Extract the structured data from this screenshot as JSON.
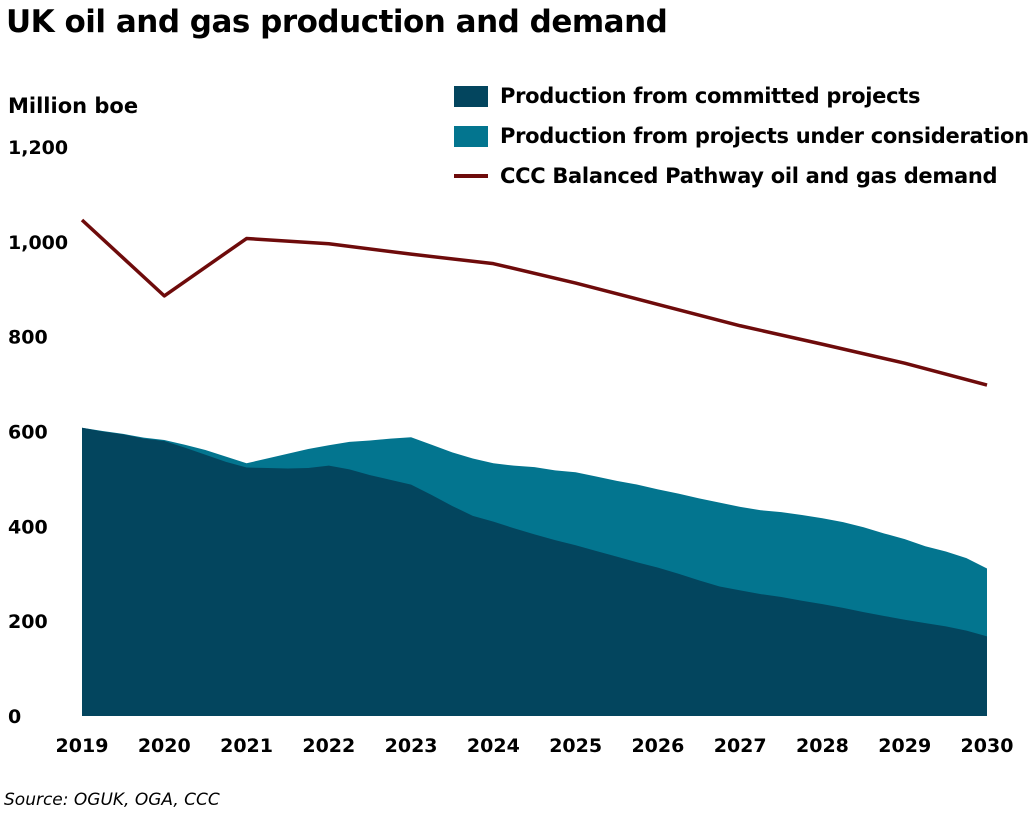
{
  "title": "UK oil and gas production and demand",
  "source": "Source: OGUK, OGA, CCC",
  "colors": {
    "committed": "#03455e",
    "consideration": "#03758f",
    "demand": "#6e0b0b"
  },
  "chart_data": {
    "type": "area",
    "title": "UK oil and gas production and demand",
    "ylabel": "Million boe",
    "xlabel": "",
    "ylim": [
      0,
      1200
    ],
    "y_ticks": [
      0,
      200,
      400,
      600,
      800,
      1000,
      1200
    ],
    "y_tick_labels": [
      "0",
      "200",
      "400",
      "600",
      "800",
      "1,000",
      "1,200"
    ],
    "x_ticks": [
      2019,
      2020,
      2021,
      2022,
      2023,
      2024,
      2025,
      2026,
      2027,
      2028,
      2029,
      2030
    ],
    "x_tick_labels": [
      "2019",
      "2020",
      "2021",
      "2022",
      "2023",
      "2024",
      "2025",
      "2026",
      "2027",
      "2028",
      "2029",
      "2030"
    ],
    "grid": false,
    "legend_position": "top-right",
    "series": [
      {
        "name": "Production from committed projects",
        "kind": "area",
        "x": [
          2019,
          2019.25,
          2019.5,
          2019.75,
          2020,
          2020.25,
          2020.5,
          2020.75,
          2021,
          2021.25,
          2021.5,
          2021.75,
          2022,
          2022.25,
          2022.5,
          2022.75,
          2023,
          2023.25,
          2023.5,
          2023.75,
          2024,
          2024.25,
          2024.5,
          2024.75,
          2025,
          2025.25,
          2025.5,
          2025.75,
          2026,
          2026.25,
          2026.5,
          2026.75,
          2027,
          2027.25,
          2027.5,
          2027.75,
          2028,
          2028.25,
          2028.5,
          2028.75,
          2029,
          2029.25,
          2029.5,
          2029.75,
          2030
        ],
        "values": [
          608,
          600,
          594,
          585,
          580,
          566,
          551,
          536,
          524,
          523,
          522,
          523,
          528,
          520,
          508,
          498,
          488,
          466,
          443,
          422,
          410,
          396,
          383,
          371,
          360,
          348,
          336,
          324,
          313,
          300,
          286,
          273,
          265,
          257,
          251,
          243,
          236,
          228,
          219,
          211,
          203,
          196,
          189,
          180,
          168
        ]
      },
      {
        "name": "Production from projects under consideration",
        "kind": "area-stacked-total",
        "x": [
          2019,
          2019.25,
          2019.5,
          2019.75,
          2020,
          2020.25,
          2020.5,
          2020.75,
          2021,
          2021.25,
          2021.5,
          2021.75,
          2022,
          2022.25,
          2022.5,
          2022.75,
          2023,
          2023.25,
          2023.5,
          2023.75,
          2024,
          2024.25,
          2024.5,
          2024.75,
          2025,
          2025.25,
          2025.5,
          2025.75,
          2026,
          2026.25,
          2026.5,
          2026.75,
          2027,
          2027.25,
          2027.5,
          2027.75,
          2028,
          2028.25,
          2028.5,
          2028.75,
          2029,
          2029.25,
          2029.5,
          2029.75,
          2030
        ],
        "values": [
          608,
          601,
          595,
          587,
          582,
          572,
          561,
          547,
          533,
          543,
          553,
          563,
          571,
          578,
          581,
          585,
          588,
          572,
          556,
          543,
          533,
          528,
          525,
          518,
          514,
          505,
          496,
          488,
          478,
          469,
          459,
          450,
          441,
          434,
          430,
          424,
          417,
          409,
          398,
          385,
          373,
          358,
          347,
          333,
          311
        ]
      },
      {
        "name": "CCC Balanced Pathway oil and gas demand",
        "kind": "line",
        "x": [
          2019,
          2020,
          2021,
          2022,
          2023,
          2024,
          2025,
          2026,
          2027,
          2028,
          2029,
          2030
        ],
        "values": [
          1046,
          886,
          1007,
          996,
          974,
          954,
          913,
          868,
          823,
          784,
          744,
          698
        ]
      }
    ]
  }
}
